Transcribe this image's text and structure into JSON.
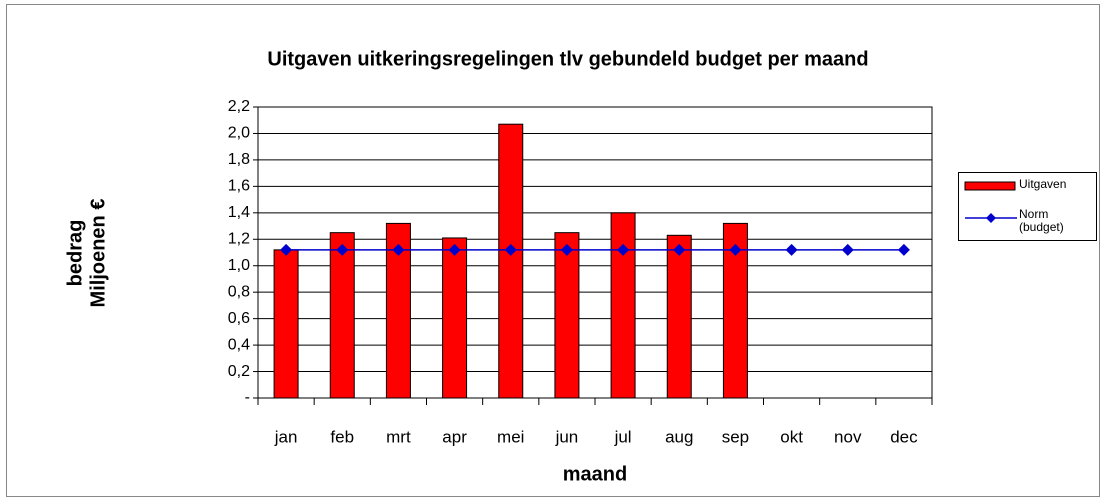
{
  "chart_data": {
    "type": "bar_line",
    "title": "Uitgaven uitkeringsregelingen tlv gebundeld budget per maand",
    "x_label": "maand",
    "y_label": [
      "bedrag",
      "Miljoenen €"
    ],
    "categories": [
      "jan",
      "feb",
      "mrt",
      "apr",
      "mei",
      "jun",
      "jul",
      "aug",
      "sep",
      "okt",
      "nov",
      "dec"
    ],
    "series": [
      {
        "name": "Uitgaven",
        "type": "bar",
        "color": "#ff0000",
        "values": [
          1.12,
          1.25,
          1.32,
          1.21,
          2.07,
          1.25,
          1.4,
          1.23,
          1.32,
          null,
          null,
          null
        ]
      },
      {
        "name": "Norm (budget)",
        "type": "line",
        "color": "#0000cc",
        "values": [
          1.12,
          1.12,
          1.12,
          1.12,
          1.12,
          1.12,
          1.12,
          1.12,
          1.12,
          1.12,
          1.12,
          1.12
        ]
      }
    ],
    "ylim": [
      0,
      2.2
    ],
    "yticks": [
      {
        "value": 0,
        "label": "-"
      },
      {
        "value": 0.2,
        "label": "0,2"
      },
      {
        "value": 0.4,
        "label": "0,4"
      },
      {
        "value": 0.6,
        "label": "0,6"
      },
      {
        "value": 0.8,
        "label": "0,8"
      },
      {
        "value": 1.0,
        "label": "1,0"
      },
      {
        "value": 1.2,
        "label": "1,2"
      },
      {
        "value": 1.4,
        "label": "1,4"
      },
      {
        "value": 1.6,
        "label": "1,6"
      },
      {
        "value": 1.8,
        "label": "1,8"
      },
      {
        "value": 2.0,
        "label": "2,0"
      },
      {
        "value": 2.2,
        "label": "2,2"
      }
    ],
    "grid": true,
    "legend": "right"
  }
}
